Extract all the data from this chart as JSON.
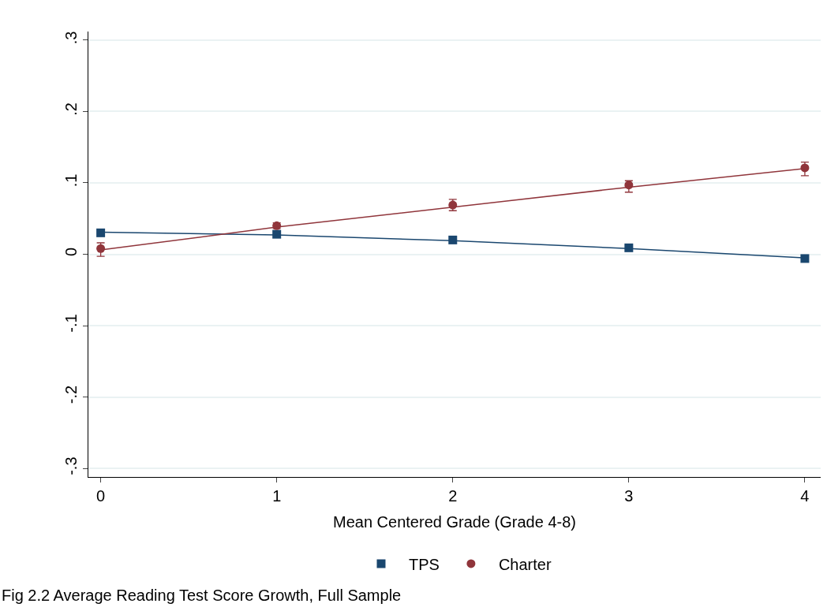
{
  "chart_data": {
    "type": "scatter",
    "xlabel": "Mean Centered Grade (Grade 4-8)",
    "x": [
      0,
      1,
      2,
      3,
      4
    ],
    "series": [
      {
        "name": "TPS",
        "color": "#1a476f",
        "marker": "square",
        "values": [
          0.03,
          0.028,
          0.02,
          0.009,
          -0.006
        ]
      },
      {
        "name": "Charter",
        "color": "#90353b",
        "marker": "circle",
        "values": [
          0.008,
          0.04,
          0.069,
          0.097,
          0.121
        ],
        "errors": [
          [
            -0.003,
            0.016
          ],
          [
            0.036,
            0.044
          ],
          [
            0.061,
            0.077
          ],
          [
            0.087,
            0.103
          ],
          [
            0.11,
            0.129
          ]
        ]
      },
      {
        "type": "line",
        "color": "#1a476f",
        "values": [
          0.031,
          0.027,
          0.019,
          0.008,
          -0.005
        ],
        "line_style": "solid",
        "marker": "none"
      },
      {
        "type": "line",
        "color": "#90353b",
        "values": [
          0.006,
          0.038,
          0.066,
          0.094,
          0.12
        ],
        "line_style": "solid",
        "marker": "none"
      }
    ],
    "xlim": [
      -0.07,
      4.09
    ],
    "xticks": [
      0,
      1,
      2,
      3,
      4
    ],
    "ylim": [
      -0.312,
      0.312
    ],
    "yticks": [
      {
        "value": -0.3,
        "label": "-.3"
      },
      {
        "value": -0.2,
        "label": "-.2"
      },
      {
        "value": -0.1,
        "label": "-.1"
      },
      0,
      {
        "value": 0.1,
        "label": ".1"
      },
      {
        "value": 0.2,
        "label": ".2"
      },
      {
        "value": 0.3,
        "label": ".3"
      }
    ],
    "grid": "y",
    "legend": "bottom",
    "annotations": [
      "Fig 2.2 Average Reading Test Score Growth, Full Sample"
    ]
  }
}
